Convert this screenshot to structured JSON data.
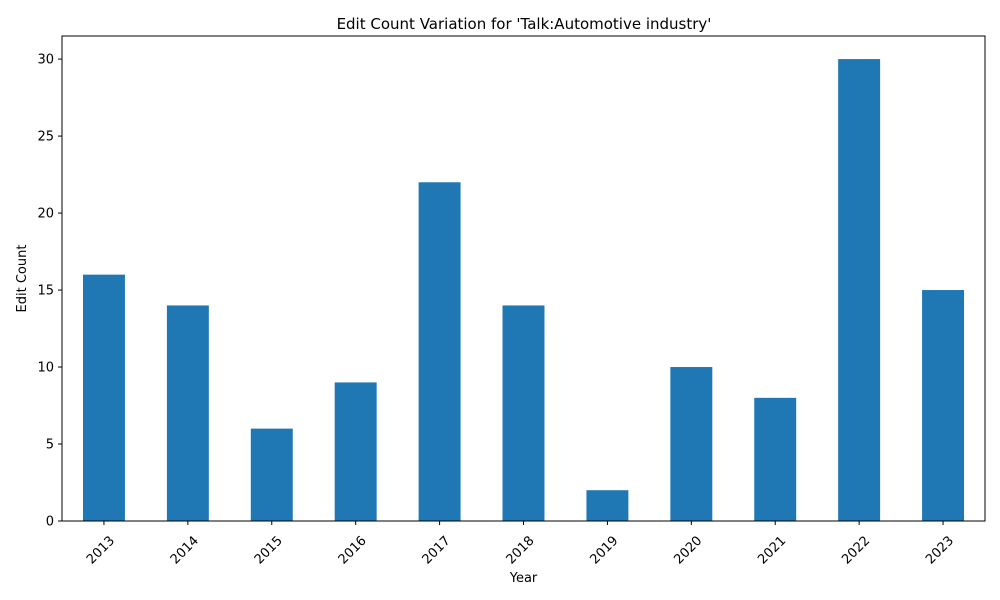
{
  "chart_data": {
    "type": "bar",
    "title": "Edit Count Variation for 'Talk:Automotive industry'",
    "xlabel": "Year",
    "ylabel": "Edit Count",
    "categories": [
      "2013",
      "2014",
      "2015",
      "2016",
      "2017",
      "2018",
      "2019",
      "2020",
      "2021",
      "2022",
      "2023"
    ],
    "values": [
      16,
      14,
      6,
      9,
      22,
      14,
      2,
      10,
      8,
      30,
      15
    ],
    "ylim": [
      0,
      31.5
    ],
    "yticks": [
      0,
      5,
      10,
      15,
      20,
      25,
      30
    ],
    "grid": false,
    "legend": "none",
    "bar_color": "#1f77b4",
    "xtick_rotation_deg": 45
  }
}
